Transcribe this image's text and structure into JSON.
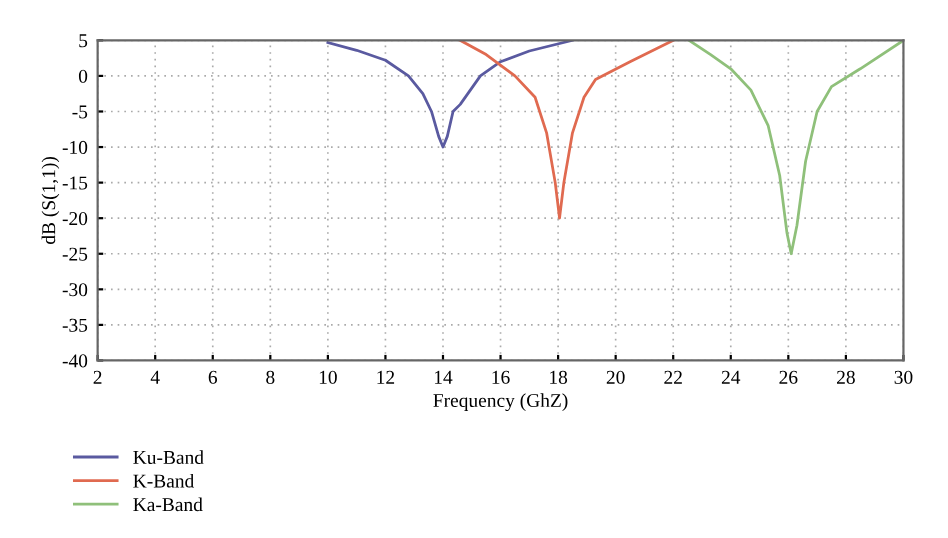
{
  "chart_data": {
    "type": "line",
    "xlabel": "Frequency (GhZ)",
    "ylabel": "dB (S(1,1))",
    "xlim": [
      2,
      30
    ],
    "ylim": [
      -40,
      5
    ],
    "xticks": [
      2,
      4,
      6,
      8,
      10,
      12,
      14,
      16,
      18,
      20,
      22,
      24,
      26,
      28,
      30
    ],
    "yticks": [
      -40,
      -35,
      -30,
      -25,
      -20,
      -15,
      -10,
      -5,
      0,
      5
    ],
    "grid": true,
    "legend": "bottom left",
    "series": [
      {
        "name": "Ku-Band",
        "color": "#5a5aa0",
        "x": [
          10,
          11,
          12,
          12.8,
          13.3,
          13.6,
          13.85,
          14,
          14.15,
          14.35,
          14.6,
          15.3,
          16,
          17,
          18.5
        ],
        "values": [
          4.7,
          3.6,
          2.2,
          0,
          -2.5,
          -5,
          -8.5,
          -10,
          -8.5,
          -5,
          -4,
          0,
          2,
          3.5,
          5
        ]
      },
      {
        "name": "K-Band",
        "color": "#e06a50",
        "x": [
          14.6,
          15.5,
          16.5,
          17.2,
          17.6,
          17.9,
          18.05,
          18.2,
          18.5,
          18.9,
          19.3,
          20.5,
          22
        ],
        "values": [
          5,
          3,
          0,
          -3,
          -8,
          -15,
          -20,
          -15,
          -8,
          -3,
          -0.5,
          2,
          5
        ]
      },
      {
        "name": "Ka-Band",
        "color": "#8fc07a",
        "x": [
          22.55,
          23.3,
          24,
          24.7,
          25.3,
          25.7,
          25.95,
          26.1,
          26.3,
          26.6,
          27,
          27.5,
          28.5,
          30
        ],
        "values": [
          5,
          3,
          1,
          -2,
          -7,
          -14,
          -22,
          -25,
          -21,
          -12,
          -5,
          -1.5,
          1,
          5
        ]
      }
    ]
  }
}
